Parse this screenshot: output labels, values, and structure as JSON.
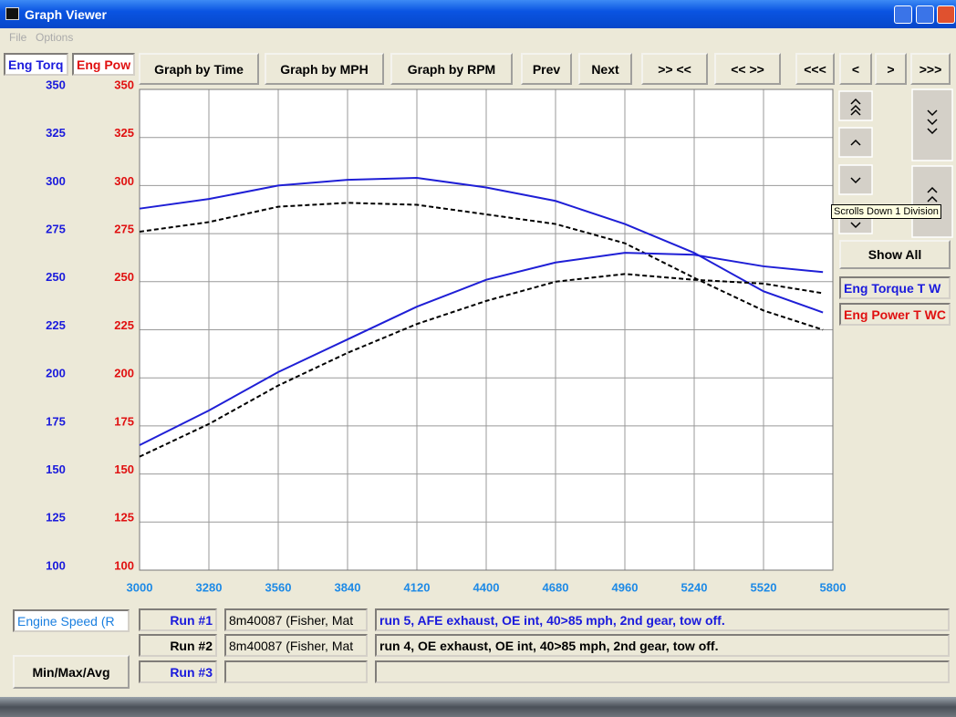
{
  "window": {
    "title": "Graph Viewer",
    "menu": [
      "File",
      "Options"
    ]
  },
  "toolbar": {
    "buttons": [
      "Graph by Time",
      "Graph by MPH",
      "Graph by RPM",
      "Prev",
      "Next",
      ">> <<",
      "<< >>",
      "<<<",
      "<",
      ">",
      ">>>"
    ]
  },
  "left_tabs": [
    "Eng Torq",
    "Eng Pow"
  ],
  "right_panel": {
    "tooltip": "Scrolls Down 1 Division",
    "show_all": "Show All",
    "legend": [
      "Eng Torque T W",
      "Eng Power T WC"
    ]
  },
  "chart_data": {
    "type": "line",
    "x": [
      3000,
      3280,
      3560,
      3840,
      4120,
      4400,
      4680,
      4960,
      5240,
      5520,
      5760
    ],
    "xlim": [
      3000,
      5800
    ],
    "xticks": [
      3000,
      3280,
      3560,
      3840,
      4120,
      4400,
      4680,
      4960,
      5240,
      5520,
      5800
    ],
    "ylim": [
      100,
      350
    ],
    "yticks": [
      100,
      125,
      150,
      175,
      200,
      225,
      250,
      275,
      300,
      325,
      350
    ],
    "y2lim": [
      100,
      350
    ],
    "y2ticks": [
      100,
      125,
      150,
      175,
      200,
      225,
      250,
      275,
      300,
      325,
      350
    ],
    "grid": true,
    "series": [
      {
        "color": "#1f1fd6",
        "dashed": false,
        "values": [
          288,
          293,
          300,
          303,
          304,
          299,
          292,
          280,
          265,
          245,
          234
        ]
      },
      {
        "color": "#000000",
        "dashed": true,
        "values": [
          276,
          281,
          289,
          291,
          290,
          285,
          280,
          270,
          252,
          235,
          225
        ]
      },
      {
        "color": "#1f1fd6",
        "dashed": false,
        "axis": "y2",
        "values": [
          165,
          183,
          203,
          220,
          237,
          251,
          260,
          265,
          264,
          258,
          255
        ]
      },
      {
        "color": "#000000",
        "dashed": true,
        "axis": "y2",
        "values": [
          159,
          176,
          196,
          213,
          228,
          240,
          250,
          254,
          251,
          249,
          244
        ]
      }
    ]
  },
  "footer": {
    "x_channel": "Engine Speed (R",
    "button": "Min/Max/Avg",
    "runs": [
      {
        "label": "Run #1",
        "file": "8m40087 (Fisher, Mat",
        "description": "run 5, AFE exhaust, OE int, 40>85 mph, 2nd gear, tow off."
      },
      {
        "label": "Run #2",
        "file": "8m40087 (Fisher, Mat",
        "description": "run 4, OE exhaust, OE int, 40>85 mph, 2nd gear, tow off."
      },
      {
        "label": "Run #3"
      }
    ]
  }
}
